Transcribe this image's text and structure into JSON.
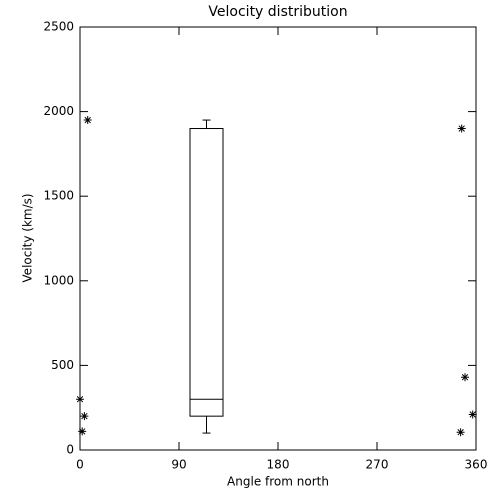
{
  "chart_data": {
    "type": "box",
    "title": "Velocity distribution",
    "x_label": "Angle from north",
    "y_label": "Velocity (km/s)",
    "xlim": [
      0,
      360
    ],
    "xticks": [
      0,
      90,
      180,
      270,
      360
    ],
    "ylim": [
      0,
      2500
    ],
    "yticks": [
      0,
      500,
      1000,
      1500,
      2000,
      2500
    ],
    "box": {
      "x": 115,
      "width": 30,
      "whislo": 100,
      "q1": 200,
      "med": 300,
      "q3": 1900,
      "whishi": 1950
    },
    "points": {
      "x": [
        0,
        4,
        2,
        7,
        347,
        350,
        357,
        346
      ],
      "y": [
        300,
        200,
        110,
        1950,
        1900,
        430,
        210,
        105
      ]
    },
    "color": "#000000"
  }
}
